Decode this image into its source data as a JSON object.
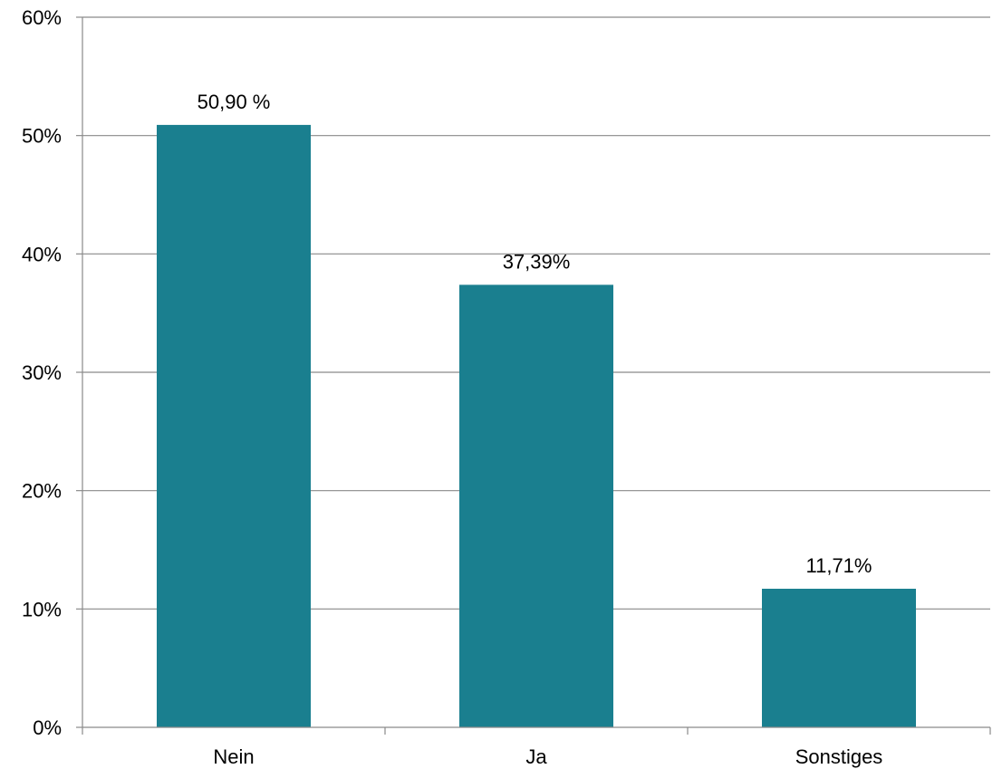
{
  "chart_data": {
    "type": "bar",
    "categories": [
      "Nein",
      "Ja",
      "Sonstiges"
    ],
    "values": [
      50.9,
      37.39,
      11.71
    ],
    "data_labels": [
      "50,90 %",
      "37,39%",
      "11,71%"
    ],
    "y_ticks": [
      0,
      10,
      20,
      30,
      40,
      50,
      60
    ],
    "y_tick_labels": [
      "0%",
      "10%",
      "20%",
      "30%",
      "40%",
      "50%",
      "60%"
    ],
    "ylim": [
      0,
      60
    ],
    "grid": true,
    "legend": "none",
    "bar_color": "#1a7f8f",
    "grid_color": "#8a8a8a"
  }
}
